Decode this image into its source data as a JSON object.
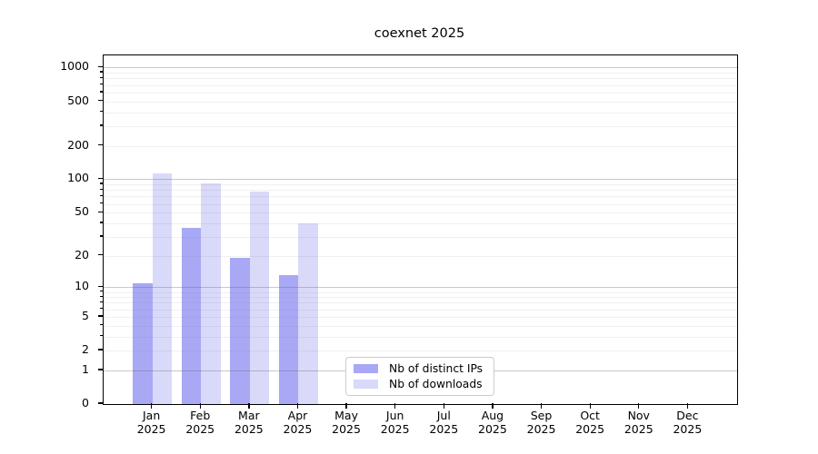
{
  "title": "coexnet 2025",
  "chart_data": {
    "type": "bar",
    "title": "coexnet 2025",
    "year_label": "2025",
    "categories": [
      "Jan",
      "Feb",
      "Mar",
      "Apr",
      "May",
      "Jun",
      "Jul",
      "Aug",
      "Sep",
      "Oct",
      "Nov",
      "Dec"
    ],
    "series": [
      {
        "name": "Nb of distinct IPs",
        "color": "#a8a8f5",
        "values": [
          11,
          36,
          19,
          13,
          0,
          0,
          0,
          0,
          0,
          0,
          0,
          0
        ]
      },
      {
        "name": "Nb of downloads",
        "color": "#d9d9f9",
        "values": [
          114,
          91,
          77,
          40,
          0,
          0,
          0,
          0,
          0,
          0,
          0,
          0
        ]
      }
    ],
    "yscale": "log1p",
    "yticks": [
      0,
      1,
      2,
      5,
      10,
      20,
      50,
      100,
      200,
      500,
      1000
    ],
    "ylim": [
      0,
      1300
    ],
    "grid": true,
    "legend_position": "lower-center",
    "colors": {
      "major_grid": "#c9c9c9",
      "minor_grid": "#efefef",
      "axis": "#000000",
      "background": "#ffffff"
    }
  }
}
